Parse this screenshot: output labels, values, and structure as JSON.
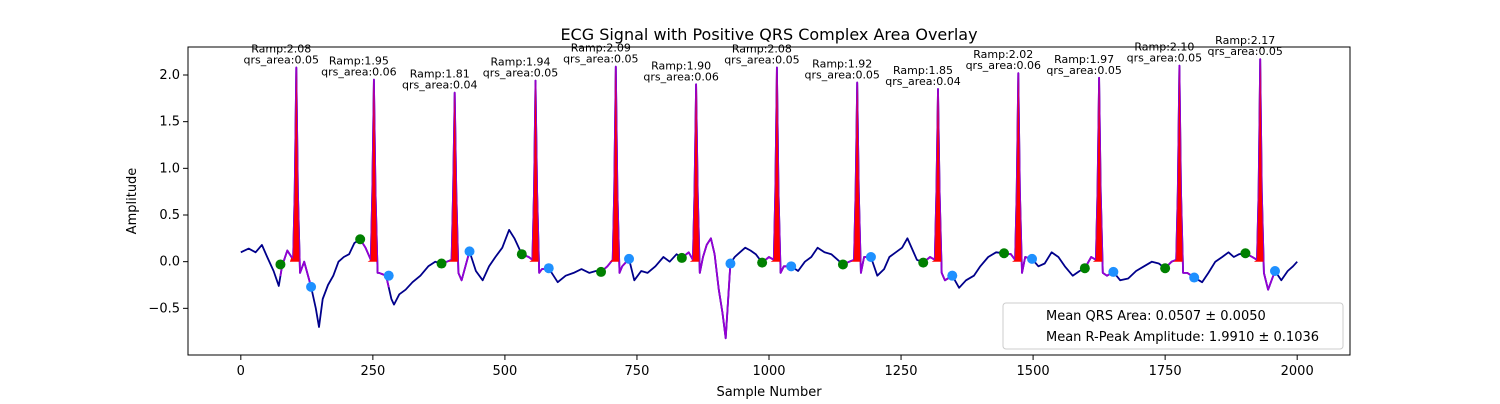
{
  "chart_data": {
    "type": "line",
    "title": "ECG Signal with Positive QRS Complex Area Overlay",
    "xlabel": "Sample Number",
    "ylabel": "Amplitude",
    "xlim": [
      -100,
      2100
    ],
    "ylim": [
      -1.0,
      2.3
    ],
    "xticks": [
      0,
      250,
      500,
      750,
      1000,
      1250,
      1500,
      1750,
      2000
    ],
    "yticks": [
      -0.5,
      0.0,
      0.5,
      1.0,
      1.5,
      2.0
    ],
    "xtick_labels": [
      "0",
      "250",
      "500",
      "750",
      "1000",
      "1250",
      "1500",
      "1750",
      "2000"
    ],
    "ytick_labels": [
      "−0.5",
      "0.0",
      "0.5",
      "1.0",
      "1.5",
      "2.0"
    ],
    "grid": false,
    "legend_position": "lower-right",
    "legend_entries": [
      "Mean QRS Area: 0.0507 ± 0.0050",
      "Mean R-Peak Amplitude: 1.9910 ± 0.1036"
    ],
    "colors": {
      "signal": "#00008b",
      "beat_segment": "#9400d3",
      "qrs_fill": "#ff0000",
      "onset_marker": "#008000",
      "offset_marker": "#1e90ff"
    },
    "beats": [
      {
        "r": 105,
        "amp": 2.08,
        "area": 0.05,
        "label": "Ramp:2.08\nqrs_area:0.05",
        "onset": [
          75,
          -0.03
        ],
        "offset": [
          133,
          -0.27
        ]
      },
      {
        "r": 252,
        "amp": 1.95,
        "area": 0.06,
        "label": "Ramp:1.95\nqrs_area:0.06",
        "onset": [
          226,
          0.24
        ],
        "offset": [
          280,
          -0.15
        ]
      },
      {
        "r": 405,
        "amp": 1.81,
        "area": 0.04,
        "label": "Ramp:1.81\nqrs_area:0.04",
        "onset": [
          380,
          -0.02
        ],
        "offset": [
          433,
          0.11
        ]
      },
      {
        "r": 558,
        "amp": 1.94,
        "area": 0.05,
        "label": "Ramp:1.94\nqrs_area:0.05",
        "onset": [
          532,
          0.08
        ],
        "offset": [
          583,
          -0.07
        ]
      },
      {
        "r": 710,
        "amp": 2.09,
        "area": 0.05,
        "label": "Ramp:2.09\nqrs_area:0.05",
        "onset": [
          682,
          -0.11
        ],
        "offset": [
          735,
          0.03
        ]
      },
      {
        "r": 862,
        "amp": 1.9,
        "area": 0.06,
        "label": "Ramp:1.90\nqrs_area:0.06",
        "onset": [
          835,
          0.04
        ],
        "offset": [
          927,
          -0.02
        ]
      },
      {
        "r": 1015,
        "amp": 2.08,
        "area": 0.05,
        "label": "Ramp:2.08\nqrs_area:0.05",
        "onset": [
          987,
          -0.01
        ],
        "offset": [
          1042,
          -0.05
        ]
      },
      {
        "r": 1167,
        "amp": 1.92,
        "area": 0.05,
        "label": "Ramp:1.92\nqrs_area:0.05",
        "onset": [
          1140,
          -0.03
        ],
        "offset": [
          1193,
          0.05
        ]
      },
      {
        "r": 1320,
        "amp": 1.85,
        "area": 0.04,
        "label": "Ramp:1.85\nqrs_area:0.04",
        "onset": [
          1292,
          -0.01
        ],
        "offset": [
          1347,
          -0.15
        ]
      },
      {
        "r": 1472,
        "amp": 2.02,
        "area": 0.06,
        "label": "Ramp:2.02\nqrs_area:0.06",
        "onset": [
          1445,
          0.09
        ],
        "offset": [
          1498,
          0.03
        ]
      },
      {
        "r": 1625,
        "amp": 1.97,
        "area": 0.05,
        "label": "Ramp:1.97\nqrs_area:0.05",
        "onset": [
          1598,
          -0.07
        ],
        "offset": [
          1652,
          -0.11
        ]
      },
      {
        "r": 1777,
        "amp": 2.1,
        "area": 0.05,
        "label": "Ramp:2.10\nqrs_area:0.05",
        "onset": [
          1750,
          -0.07
        ],
        "offset": [
          1805,
          -0.17
        ]
      },
      {
        "r": 1930,
        "amp": 2.17,
        "area": 0.05,
        "label": "Ramp:2.17\nqrs_area:0.05",
        "onset": [
          1902,
          0.09
        ],
        "offset": [
          1958,
          -0.1
        ]
      }
    ],
    "baseline": [
      [
        0,
        0.1
      ],
      [
        15,
        0.14
      ],
      [
        28,
        0.1
      ],
      [
        40,
        0.18
      ],
      [
        50,
        0.05
      ],
      [
        62,
        -0.1
      ],
      [
        72,
        -0.26
      ],
      [
        78,
        -0.05
      ],
      [
        88,
        0.12
      ],
      [
        96,
        0.05
      ],
      [
        120,
        0.0
      ],
      [
        133,
        -0.27
      ],
      [
        142,
        -0.5
      ],
      [
        148,
        -0.7
      ],
      [
        155,
        -0.4
      ],
      [
        165,
        -0.25
      ],
      [
        175,
        -0.15
      ],
      [
        185,
        0.0
      ],
      [
        195,
        0.05
      ],
      [
        205,
        0.08
      ],
      [
        215,
        0.2
      ],
      [
        226,
        0.24
      ],
      [
        236,
        0.15
      ],
      [
        262,
        -0.12
      ],
      [
        275,
        -0.15
      ],
      [
        285,
        -0.4
      ],
      [
        290,
        -0.46
      ],
      [
        300,
        -0.35
      ],
      [
        312,
        -0.3
      ],
      [
        325,
        -0.22
      ],
      [
        340,
        -0.15
      ],
      [
        355,
        -0.05
      ],
      [
        368,
        0.0
      ],
      [
        380,
        -0.02
      ],
      [
        390,
        0.0
      ],
      [
        418,
        -0.2
      ],
      [
        433,
        0.11
      ],
      [
        445,
        -0.1
      ],
      [
        458,
        -0.2
      ],
      [
        470,
        -0.05
      ],
      [
        482,
        0.05
      ],
      [
        495,
        0.15
      ],
      [
        508,
        0.34
      ],
      [
        518,
        0.25
      ],
      [
        532,
        0.08
      ],
      [
        545,
        0.05
      ],
      [
        570,
        -0.08
      ],
      [
        583,
        -0.07
      ],
      [
        600,
        -0.22
      ],
      [
        615,
        -0.15
      ],
      [
        630,
        -0.12
      ],
      [
        645,
        -0.08
      ],
      [
        660,
        -0.12
      ],
      [
        672,
        -0.1
      ],
      [
        682,
        -0.11
      ],
      [
        694,
        -0.05
      ],
      [
        722,
        -0.05
      ],
      [
        735,
        0.03
      ],
      [
        745,
        -0.2
      ],
      [
        758,
        -0.1
      ],
      [
        770,
        -0.12
      ],
      [
        785,
        -0.05
      ],
      [
        800,
        0.05
      ],
      [
        812,
        0.0
      ],
      [
        825,
        0.08
      ],
      [
        835,
        0.04
      ],
      [
        848,
        0.1
      ],
      [
        875,
        0.05
      ],
      [
        882,
        0.18
      ],
      [
        890,
        0.25
      ],
      [
        897,
        0.08
      ],
      [
        905,
        -0.3
      ],
      [
        912,
        -0.55
      ],
      [
        918,
        -0.82
      ],
      [
        927,
        -0.02
      ],
      [
        935,
        0.05
      ],
      [
        945,
        0.1
      ],
      [
        955,
        0.15
      ],
      [
        965,
        0.12
      ],
      [
        975,
        0.08
      ],
      [
        987,
        -0.01
      ],
      [
        1000,
        0.05
      ],
      [
        1028,
        -0.05
      ],
      [
        1042,
        -0.05
      ],
      [
        1055,
        -0.1
      ],
      [
        1068,
        0.0
      ],
      [
        1080,
        0.05
      ],
      [
        1092,
        0.15
      ],
      [
        1105,
        0.1
      ],
      [
        1118,
        0.08
      ],
      [
        1130,
        0.02
      ],
      [
        1140,
        -0.03
      ],
      [
        1152,
        0.0
      ],
      [
        1180,
        0.05
      ],
      [
        1193,
        0.05
      ],
      [
        1205,
        -0.15
      ],
      [
        1218,
        -0.08
      ],
      [
        1228,
        0.05
      ],
      [
        1240,
        0.1
      ],
      [
        1252,
        0.15
      ],
      [
        1262,
        0.25
      ],
      [
        1270,
        0.15
      ],
      [
        1280,
        0.02
      ],
      [
        1292,
        -0.01
      ],
      [
        1305,
        0.05
      ],
      [
        1333,
        -0.2
      ],
      [
        1347,
        -0.15
      ],
      [
        1360,
        -0.28
      ],
      [
        1373,
        -0.2
      ],
      [
        1388,
        -0.15
      ],
      [
        1400,
        -0.05
      ],
      [
        1415,
        0.05
      ],
      [
        1430,
        0.1
      ],
      [
        1445,
        0.09
      ],
      [
        1458,
        0.08
      ],
      [
        1485,
        0.05
      ],
      [
        1498,
        0.03
      ],
      [
        1510,
        -0.05
      ],
      [
        1522,
        -0.02
      ],
      [
        1535,
        0.1
      ],
      [
        1548,
        0.05
      ],
      [
        1560,
        -0.05
      ],
      [
        1575,
        -0.15
      ],
      [
        1588,
        -0.1
      ],
      [
        1598,
        -0.07
      ],
      [
        1610,
        0.05
      ],
      [
        1640,
        -0.15
      ],
      [
        1652,
        -0.11
      ],
      [
        1665,
        -0.2
      ],
      [
        1680,
        -0.18
      ],
      [
        1695,
        -0.1
      ],
      [
        1710,
        -0.05
      ],
      [
        1725,
        0.0
      ],
      [
        1738,
        -0.02
      ],
      [
        1750,
        -0.07
      ],
      [
        1762,
        0.0
      ],
      [
        1792,
        -0.12
      ],
      [
        1805,
        -0.17
      ],
      [
        1820,
        -0.22
      ],
      [
        1832,
        -0.12
      ],
      [
        1845,
        0.0
      ],
      [
        1858,
        0.05
      ],
      [
        1870,
        0.1
      ],
      [
        1880,
        0.05
      ],
      [
        1890,
        0.08
      ],
      [
        1902,
        0.09
      ],
      [
        1915,
        0.05
      ],
      [
        1945,
        -0.3
      ],
      [
        1958,
        -0.1
      ],
      [
        1970,
        -0.2
      ],
      [
        1982,
        -0.1
      ],
      [
        1992,
        -0.05
      ],
      [
        2000,
        0.0
      ]
    ]
  }
}
